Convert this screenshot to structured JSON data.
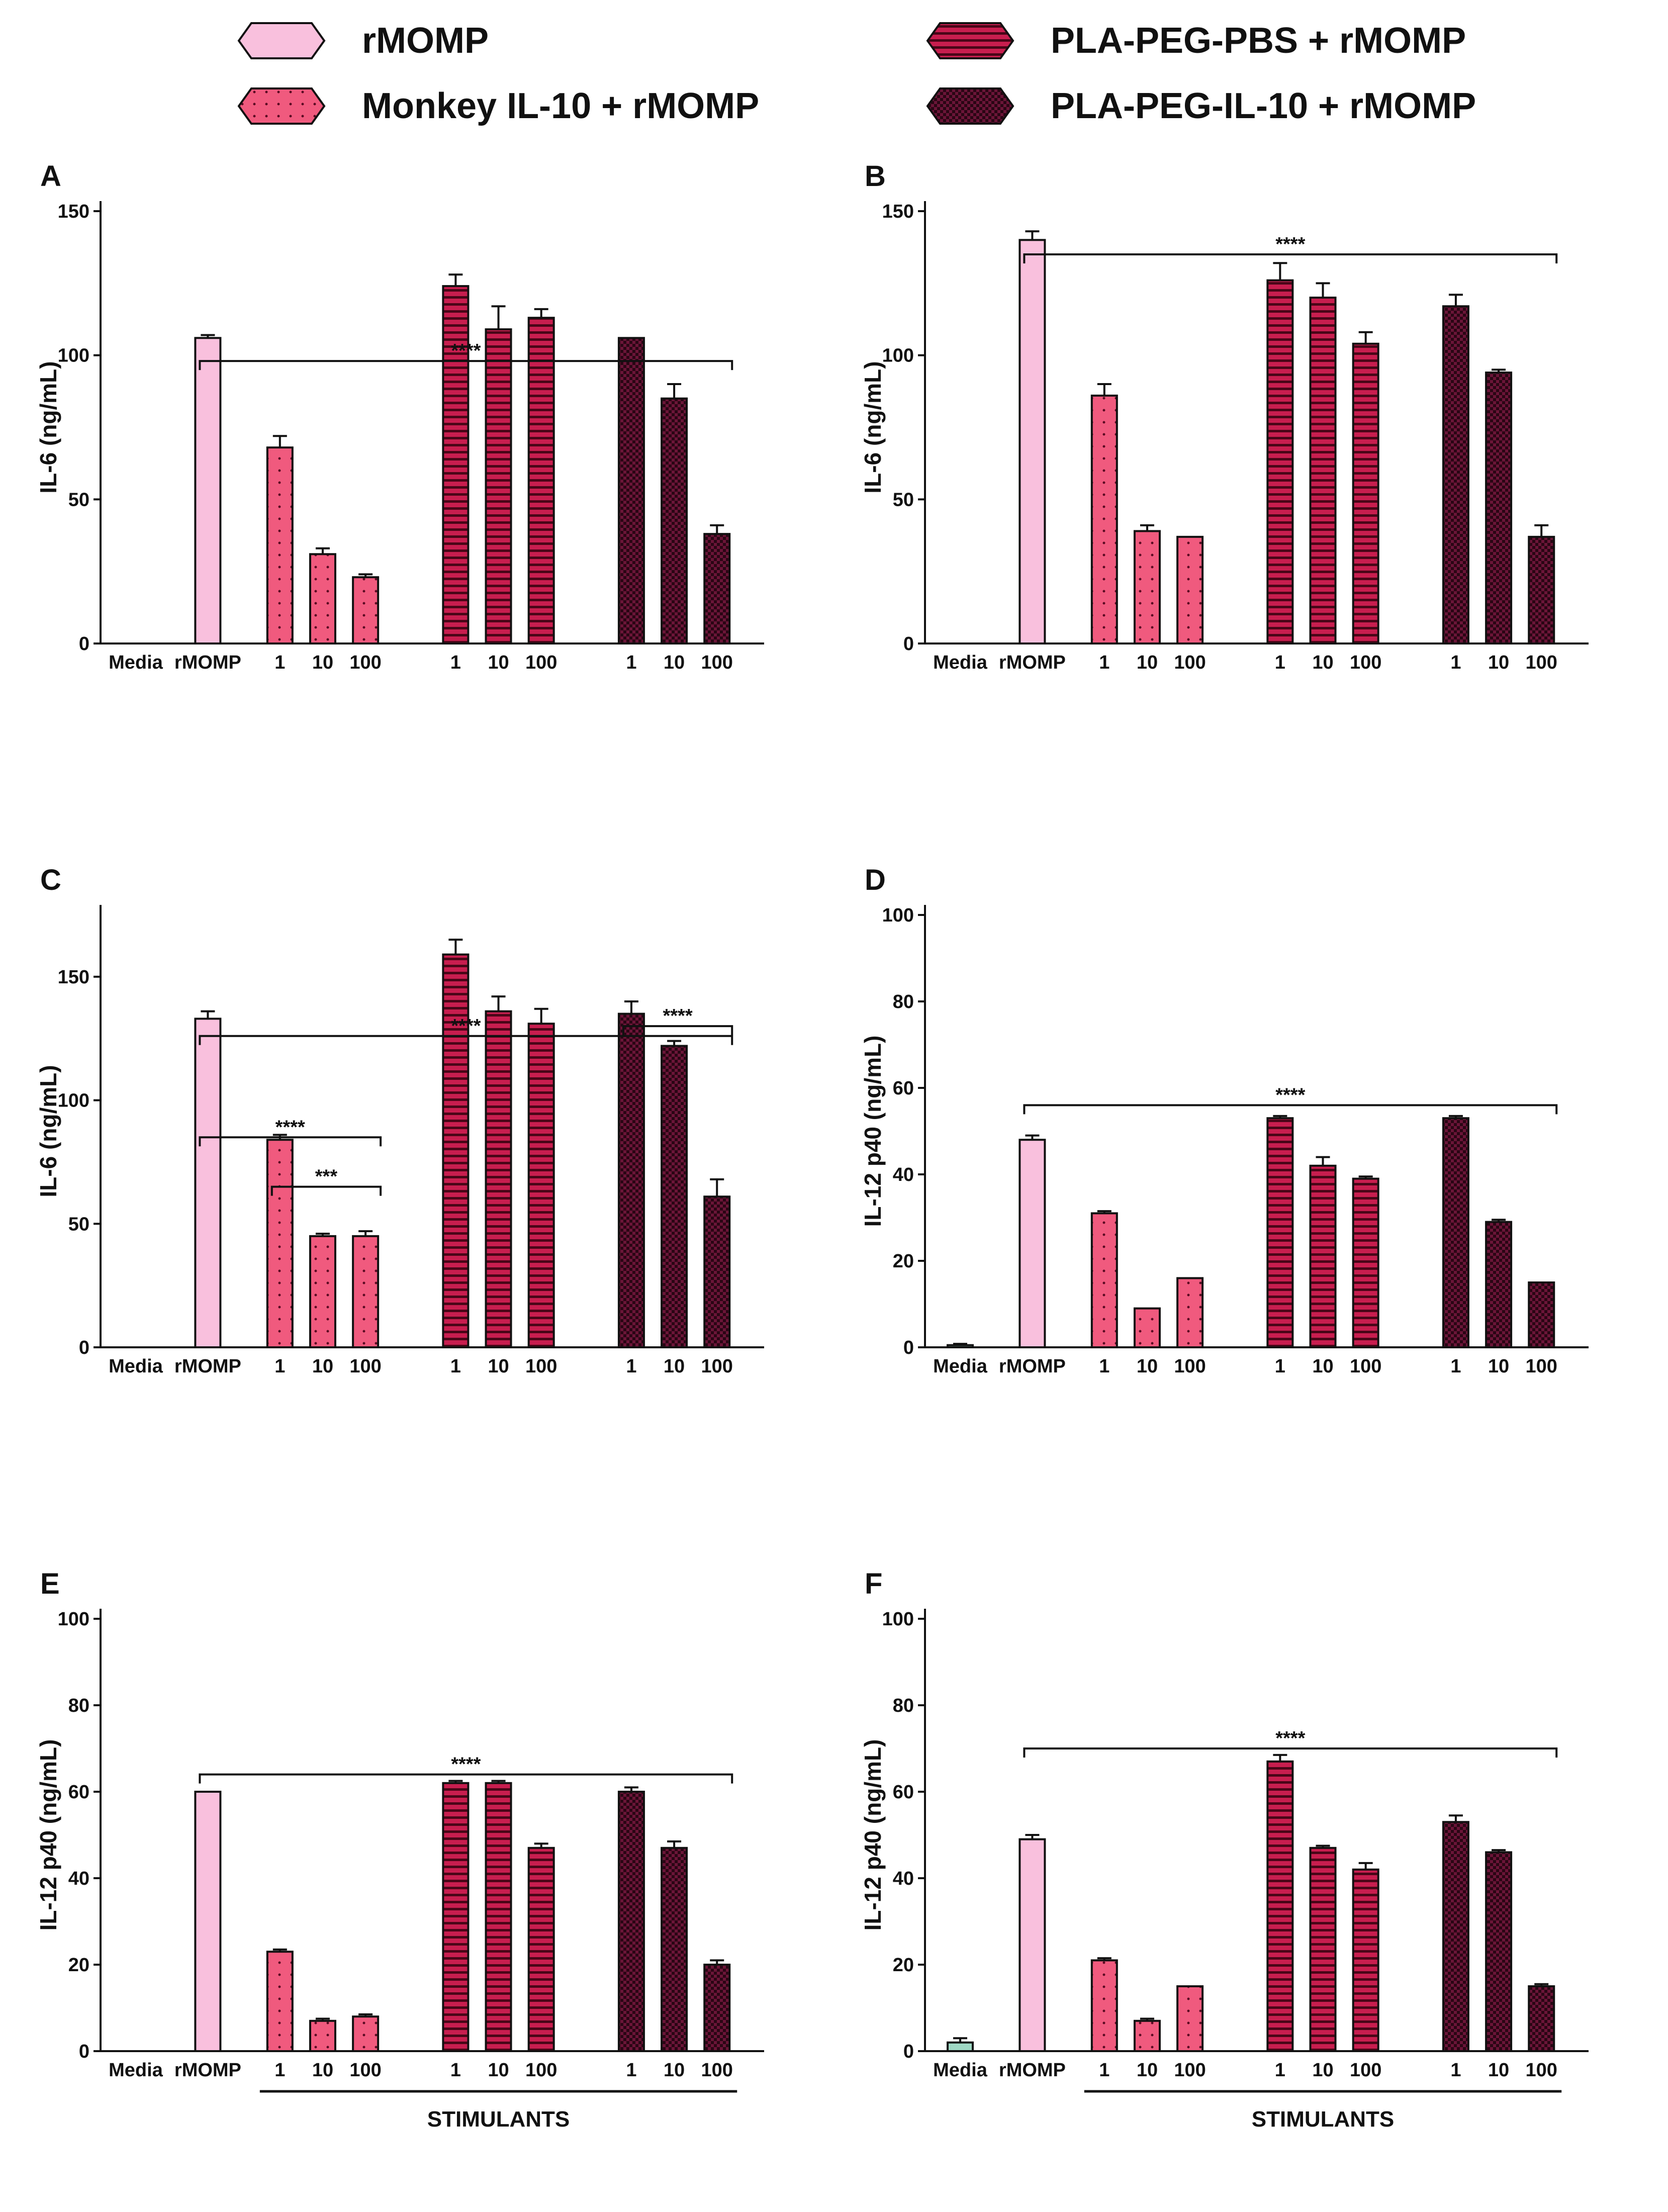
{
  "colors": {
    "rmomp": "#f9c0dd",
    "monkey": "#f05a7e",
    "plapbs": "#c81e4f",
    "plail10": "#3a0a1f",
    "media": "#9fd8c4",
    "stroke": "#111111"
  },
  "legend": [
    {
      "key": "rmomp",
      "label": "rMOMP",
      "pattern": "plain"
    },
    {
      "key": "monkey",
      "label": "Monkey IL-10 + rMOMP",
      "pattern": "dots"
    },
    {
      "key": "plapbs",
      "label": "PLA-PEG-PBS + rMOMP",
      "pattern": "hstripe"
    },
    {
      "key": "plail10",
      "label": "PLA-PEG-IL-10 + rMOMP",
      "pattern": "checker"
    }
  ],
  "chart_data": [
    {
      "type": "bar",
      "panel": "A",
      "ylabel": "IL-6 (ng/mL)",
      "ylim": [
        0,
        150
      ],
      "yticks": [
        0,
        50,
        100,
        150
      ],
      "categories": [
        "Media",
        "rMOMP",
        "1",
        "10",
        "100",
        "1",
        "10",
        "100",
        "1",
        "10",
        "100"
      ],
      "groups": [
        "media",
        "rmomp",
        "monkey",
        "monkey",
        "monkey",
        "plapbs",
        "plapbs",
        "plapbs",
        "plail10",
        "plail10",
        "plail10"
      ],
      "values": [
        0,
        106,
        68,
        31,
        23,
        124,
        109,
        113,
        106,
        85,
        38
      ],
      "errors": [
        0,
        1,
        4,
        2,
        1,
        4,
        8,
        3,
        0,
        5,
        3
      ],
      "significance": [
        {
          "label": "****",
          "from": 1,
          "to": 10,
          "y": 98
        }
      ],
      "stimulants_label": ""
    },
    {
      "type": "bar",
      "panel": "B",
      "ylabel": "IL-6 (ng/mL)",
      "ylim": [
        0,
        150
      ],
      "yticks": [
        0,
        50,
        100,
        150
      ],
      "categories": [
        "Media",
        "rMOMP",
        "1",
        "10",
        "100",
        "1",
        "10",
        "100",
        "1",
        "10",
        "100"
      ],
      "groups": [
        "media",
        "rmomp",
        "monkey",
        "monkey",
        "monkey",
        "plapbs",
        "plapbs",
        "plapbs",
        "plail10",
        "plail10",
        "plail10"
      ],
      "values": [
        0,
        140,
        86,
        39,
        37,
        126,
        120,
        104,
        117,
        94,
        37
      ],
      "errors": [
        0,
        3,
        4,
        2,
        0,
        6,
        5,
        4,
        4,
        1,
        4
      ],
      "significance": [
        {
          "label": "****",
          "from": 1,
          "to": 10,
          "y": 135
        }
      ],
      "stimulants_label": ""
    },
    {
      "type": "bar",
      "panel": "C",
      "ylabel": "IL-6 (ng/mL)",
      "ylim": [
        0,
        175
      ],
      "yticks": [
        0,
        50,
        100,
        150
      ],
      "categories": [
        "Media",
        "rMOMP",
        "1",
        "10",
        "100",
        "1",
        "10",
        "100",
        "1",
        "10",
        "100"
      ],
      "groups": [
        "media",
        "rmomp",
        "monkey",
        "monkey",
        "monkey",
        "plapbs",
        "plapbs",
        "plapbs",
        "plail10",
        "plail10",
        "plail10"
      ],
      "values": [
        0,
        133,
        84,
        45,
        45,
        159,
        136,
        131,
        135,
        122,
        61
      ],
      "errors": [
        0,
        3,
        2,
        1,
        2,
        6,
        6,
        6,
        5,
        2,
        7
      ],
      "significance": [
        {
          "label": "****",
          "from": 1,
          "to": 10,
          "y": 126
        },
        {
          "label": "****",
          "from": 8,
          "to": 10,
          "y": 130
        },
        {
          "label": "****",
          "from": 1,
          "to": 4,
          "y": 85
        },
        {
          "label": "***",
          "from": 2,
          "to": 4,
          "y": 65
        }
      ],
      "stimulants_label": ""
    },
    {
      "type": "bar",
      "panel": "D",
      "ylabel": "IL-12 p40 (ng/mL)",
      "ylim": [
        0,
        100
      ],
      "yticks": [
        0,
        20,
        40,
        60,
        80,
        100
      ],
      "categories": [
        "Media",
        "rMOMP",
        "1",
        "10",
        "100",
        "1",
        "10",
        "100",
        "1",
        "10",
        "100"
      ],
      "groups": [
        "media",
        "rmomp",
        "monkey",
        "monkey",
        "monkey",
        "plapbs",
        "plapbs",
        "plapbs",
        "plail10",
        "plail10",
        "plail10"
      ],
      "values": [
        0.5,
        48,
        31,
        9,
        16,
        53,
        42,
        39,
        53,
        29,
        15
      ],
      "errors": [
        0.3,
        1,
        0.5,
        0,
        0,
        0.5,
        2,
        0.5,
        0.5,
        0.5,
        0
      ],
      "significance": [
        {
          "label": "****",
          "from": 1,
          "to": 10,
          "y": 56
        }
      ],
      "stimulants_label": ""
    },
    {
      "type": "bar",
      "panel": "E",
      "ylabel": "IL-12 p40 (ng/mL)",
      "ylim": [
        0,
        100
      ],
      "yticks": [
        0,
        20,
        40,
        60,
        80,
        100
      ],
      "categories": [
        "Media",
        "rMOMP",
        "1",
        "10",
        "100",
        "1",
        "10",
        "100",
        "1",
        "10",
        "100"
      ],
      "groups": [
        "media",
        "rmomp",
        "monkey",
        "monkey",
        "monkey",
        "plapbs",
        "plapbs",
        "plapbs",
        "plail10",
        "plail10",
        "plail10"
      ],
      "values": [
        0,
        60,
        23,
        7,
        8,
        62,
        62,
        47,
        60,
        47,
        20
      ],
      "errors": [
        0,
        0,
        0.5,
        0.5,
        0.5,
        0.5,
        0.5,
        1,
        1,
        1.5,
        1
      ],
      "significance": [
        {
          "label": "****",
          "from": 1,
          "to": 10,
          "y": 64
        }
      ],
      "stimulants_label": "STIMULANTS"
    },
    {
      "type": "bar",
      "panel": "F",
      "ylabel": "IL-12 p40 (ng/mL)",
      "ylim": [
        0,
        100
      ],
      "yticks": [
        0,
        20,
        40,
        60,
        80,
        100
      ],
      "categories": [
        "Media",
        "rMOMP",
        "1",
        "10",
        "100",
        "1",
        "10",
        "100",
        "1",
        "10",
        "100"
      ],
      "groups": [
        "media",
        "rmomp",
        "monkey",
        "monkey",
        "monkey",
        "plapbs",
        "plapbs",
        "plapbs",
        "plail10",
        "plail10",
        "plail10"
      ],
      "values": [
        2,
        49,
        21,
        7,
        15,
        67,
        47,
        42,
        53,
        46,
        15
      ],
      "errors": [
        1,
        1,
        0.5,
        0.5,
        0,
        1.5,
        0.5,
        1.5,
        1.5,
        0.5,
        0.5
      ],
      "significance": [
        {
          "label": "****",
          "from": 1,
          "to": 10,
          "y": 70
        }
      ],
      "stimulants_label": "STIMULANTS"
    }
  ]
}
